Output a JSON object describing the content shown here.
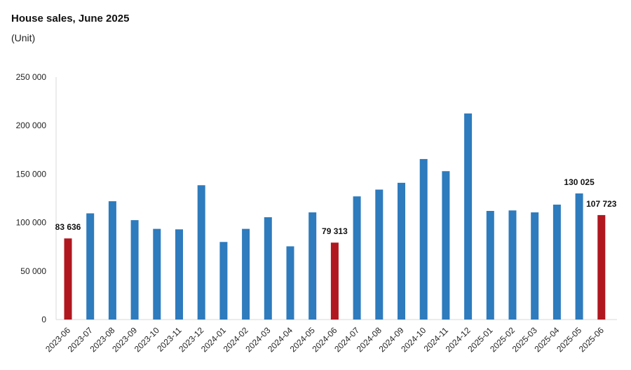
{
  "chart_data": {
    "type": "bar",
    "title": "House sales, June 2025",
    "subtitle": "(Unit)",
    "xlabel": "",
    "ylabel": "",
    "ylim": [
      0,
      250000
    ],
    "yticks": [
      {
        "value": 0,
        "label": "0"
      },
      {
        "value": 50000,
        "label": "50 000"
      },
      {
        "value": 100000,
        "label": "100 000"
      },
      {
        "value": 150000,
        "label": "150 000"
      },
      {
        "value": 200000,
        "label": "200 000"
      },
      {
        "value": 250000,
        "label": "250 000"
      }
    ],
    "grid": false,
    "colors": {
      "default": "#2E7BBD",
      "highlight": "#B0171F",
      "axis": "#D9D9D9"
    },
    "categories": [
      "2023-06",
      "2023-07",
      "2023-08",
      "2023-09",
      "2023-10",
      "2023-11",
      "2023-12",
      "2024-01",
      "2024-02",
      "2024-03",
      "2024-04",
      "2024-05",
      "2024-06",
      "2024-07",
      "2024-08",
      "2024-09",
      "2024-10",
      "2024-11",
      "2024-12",
      "2025-01",
      "2025-02",
      "2025-03",
      "2025-04",
      "2025-05",
      "2025-06"
    ],
    "values": [
      83636,
      109500,
      122000,
      102500,
      93500,
      93000,
      138500,
      80000,
      93500,
      105500,
      75500,
      110500,
      79313,
      127000,
      134000,
      141000,
      165500,
      153000,
      212500,
      112000,
      112500,
      110500,
      118500,
      130025,
      107723
    ],
    "highlight_indices": [
      0,
      12,
      24
    ],
    "data_labels": [
      {
        "index": 0,
        "text": "83 636"
      },
      {
        "index": 12,
        "text": "79 313"
      },
      {
        "index": 23,
        "text": "130 025"
      },
      {
        "index": 24,
        "text": "107 723"
      }
    ]
  }
}
